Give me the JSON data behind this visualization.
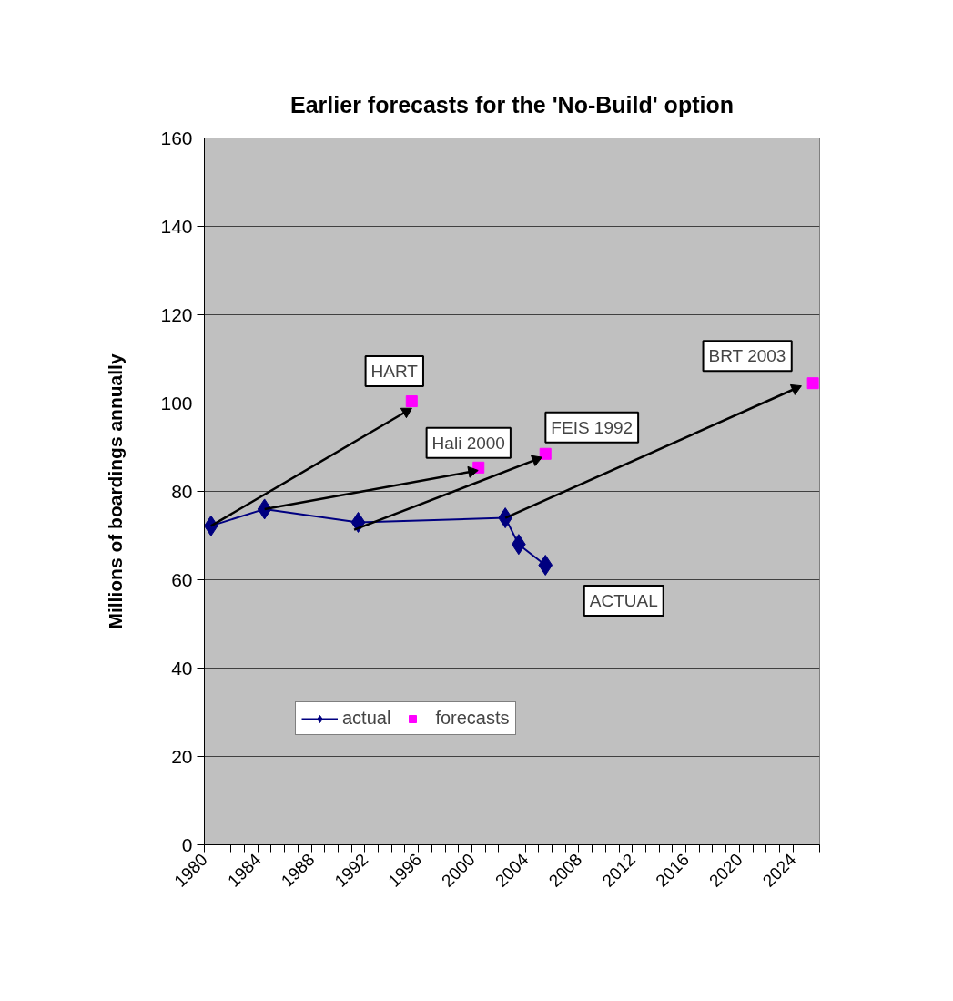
{
  "chart_data": {
    "type": "line",
    "title": "Earlier forecasts for the 'No-Build' option",
    "ylabel": "Millions of boardings annually",
    "xlim": [
      1980,
      2026
    ],
    "ylim": [
      0,
      160
    ],
    "yticks": [
      0,
      20,
      40,
      60,
      80,
      100,
      120,
      140,
      160
    ],
    "xticks": [
      1980,
      {
        "value": 1981,
        "label": null
      },
      {
        "value": 1982,
        "label": null
      },
      {
        "value": 1983,
        "label": null
      },
      1984,
      {
        "value": 1985,
        "label": null
      },
      {
        "value": 1986,
        "label": null
      },
      {
        "value": 1987,
        "label": null
      },
      1988,
      {
        "value": 1989,
        "label": null
      },
      {
        "value": 1990,
        "label": null
      },
      {
        "value": 1991,
        "label": null
      },
      1992,
      {
        "value": 1993,
        "label": null
      },
      {
        "value": 1994,
        "label": null
      },
      {
        "value": 1995,
        "label": null
      },
      1996,
      {
        "value": 1997,
        "label": null
      },
      {
        "value": 1998,
        "label": null
      },
      {
        "value": 1999,
        "label": null
      },
      2000,
      {
        "value": 2001,
        "label": null
      },
      {
        "value": 2002,
        "label": null
      },
      {
        "value": 2003,
        "label": null
      },
      2004,
      {
        "value": 2005,
        "label": null
      },
      {
        "value": 2006,
        "label": null
      },
      {
        "value": 2007,
        "label": null
      },
      2008,
      {
        "value": 2009,
        "label": null
      },
      {
        "value": 2010,
        "label": null
      },
      {
        "value": 2011,
        "label": null
      },
      2012,
      {
        "value": 2013,
        "label": null
      },
      {
        "value": 2014,
        "label": null
      },
      {
        "value": 2015,
        "label": null
      },
      2016,
      {
        "value": 2017,
        "label": null
      },
      {
        "value": 2018,
        "label": null
      },
      {
        "value": 2019,
        "label": null
      },
      2020,
      {
        "value": 2021,
        "label": null
      },
      {
        "value": 2022,
        "label": null
      },
      {
        "value": 2023,
        "label": null
      },
      2024,
      {
        "value": 2025,
        "label": null
      },
      {
        "value": 2026,
        "label": null
      }
    ],
    "grid": "y",
    "legend": "bottom",
    "series": [
      {
        "name": "actual",
        "color": "#000080",
        "marker": "diamond",
        "x": [
          1980.5,
          1984.5,
          1991.5,
          2002.5,
          2003.5,
          2005.5
        ],
        "values": [
          72.2,
          76,
          73,
          74,
          68,
          63.3
        ]
      },
      {
        "name": "forecasts",
        "type": "scatter",
        "color": "#ff00ff",
        "marker": "square",
        "x": [
          1995.5,
          2000.5,
          2005.5,
          2025.5
        ],
        "values": [
          100.4,
          85.4,
          88.5,
          104.5
        ]
      },
      {
        "marker": "triangle",
        "color": "#000000",
        "x": [
          1980.5,
          1995.1
        ],
        "values": [
          72.2,
          98.1
        ]
      },
      {
        "marker": "triangle",
        "color": "#000000",
        "x": [
          1984.5,
          2000.0
        ],
        "values": [
          76,
          84.5
        ]
      },
      {
        "marker": "triangle",
        "color": "#000000",
        "x": [
          1991.2,
          2004.8
        ],
        "values": [
          71.3,
          87.2
        ]
      },
      {
        "marker": "triangle",
        "color": "#000000",
        "x": [
          2002.5,
          2024.2
        ],
        "values": [
          74,
          103.3
        ]
      }
    ],
    "annotations": [
      {
        "text": "HART",
        "x": 1995.5,
        "y": 100.4
      },
      {
        "text": "Hali 2000",
        "x": 2000.5,
        "y": 85.4
      },
      {
        "text": "FEIS 1992",
        "x": 2005.5,
        "y": 88.5
      },
      {
        "text": "BRT 2003",
        "x": 2025.5,
        "y": 104.5
      },
      {
        "text": "ACTUAL",
        "x": 2005.5,
        "y": 63.3
      }
    ]
  }
}
